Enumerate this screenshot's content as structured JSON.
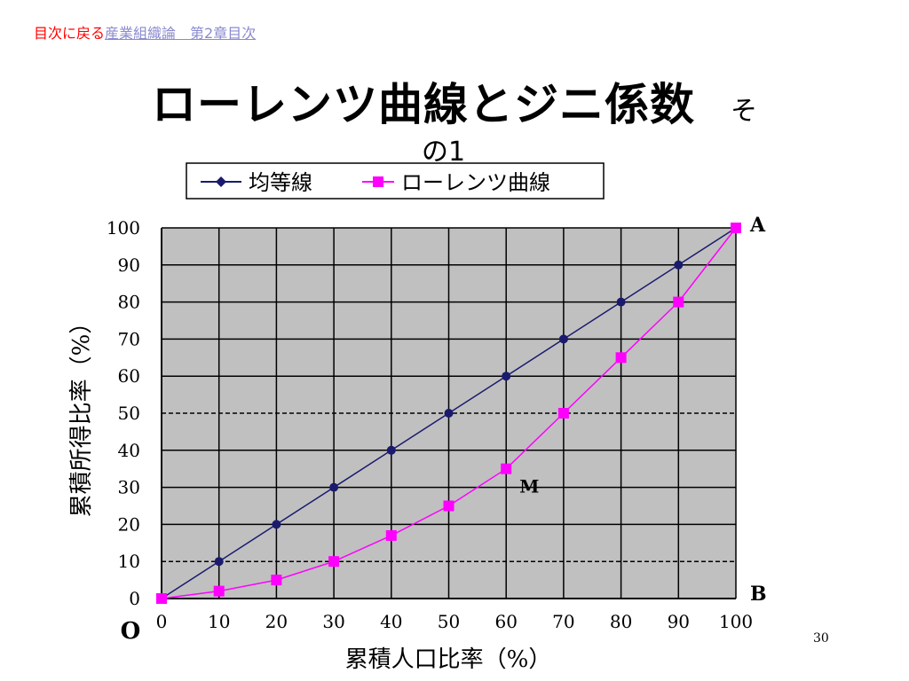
{
  "nav": {
    "back_label": "目次に戻る",
    "toc_label": "産業組織論　第2章目次"
  },
  "title": {
    "main": "ローレンツ曲線とジニ係数",
    "tail": "そ",
    "line2": "の1"
  },
  "page_number": "30",
  "colors": {
    "equality": "#1a1a6e",
    "lorenz": "#ff00ff",
    "plot_bg": "#c0c0c0"
  },
  "chart_data": {
    "type": "line",
    "x": [
      0,
      10,
      20,
      30,
      40,
      50,
      60,
      70,
      80,
      90,
      100
    ],
    "series": [
      {
        "name": "均等線",
        "values": [
          0,
          10,
          20,
          30,
          40,
          50,
          60,
          70,
          80,
          90,
          100
        ]
      },
      {
        "name": "ローレンツ曲線",
        "values": [
          0,
          2,
          5,
          10,
          17,
          25,
          35,
          50,
          65,
          80,
          100
        ]
      }
    ],
    "xlabel": "累積人口比率（%）",
    "ylabel": "累積所得比率（%）",
    "x_ticks": [
      "0",
      "10",
      "20",
      "30",
      "40",
      "50",
      "60",
      "70",
      "80",
      "90",
      "100"
    ],
    "y_ticks": [
      "0",
      "10",
      "20",
      "30",
      "40",
      "50",
      "60",
      "70",
      "80",
      "90",
      "100"
    ],
    "xlim": [
      0,
      100
    ],
    "ylim": [
      0,
      100
    ],
    "grid": true,
    "legend_position": "top",
    "annotations": [
      {
        "text": "A",
        "x": 100,
        "y": 100
      },
      {
        "text": "B",
        "x": 100,
        "y": 0
      },
      {
        "text": "M",
        "x": 60,
        "y": 35
      },
      {
        "text": "O",
        "x": 0,
        "y": 0
      }
    ]
  }
}
